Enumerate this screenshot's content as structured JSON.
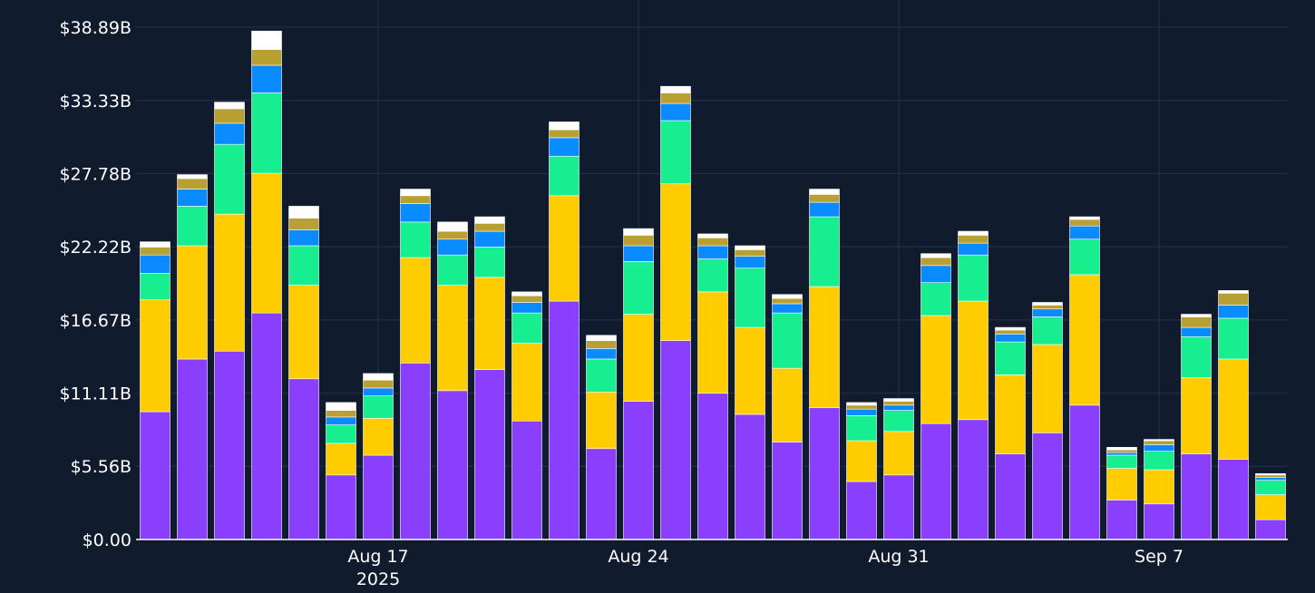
{
  "chart_data": {
    "type": "bar",
    "stacked": true,
    "title": "",
    "xlabel": "",
    "ylabel": "",
    "ylim": [
      0,
      39
    ],
    "y_ticks": [
      0,
      5.56,
      11.11,
      16.67,
      22.22,
      27.78,
      33.33,
      38.89
    ],
    "y_tick_labels": [
      "$0.00",
      "$5.56B",
      "$11.11B",
      "$16.67B",
      "$22.22B",
      "$27.78B",
      "$33.33B",
      "$38.89B"
    ],
    "x_tick_labels": [
      {
        "date": "2025-08-17",
        "line1": "Aug 17",
        "line2": "2025"
      },
      {
        "date": "2025-08-24",
        "line1": "Aug 24",
        "line2": ""
      },
      {
        "date": "2025-08-31",
        "line1": "Aug 31",
        "line2": ""
      },
      {
        "date": "2025-09-07",
        "line1": "Sep 7",
        "line2": ""
      }
    ],
    "categories": [
      "2025-08-11",
      "2025-08-12",
      "2025-08-13",
      "2025-08-14",
      "2025-08-15",
      "2025-08-16",
      "2025-08-17",
      "2025-08-18",
      "2025-08-19",
      "2025-08-20",
      "2025-08-21",
      "2025-08-22",
      "2025-08-23",
      "2025-08-24",
      "2025-08-25",
      "2025-08-26",
      "2025-08-27",
      "2025-08-28",
      "2025-08-29",
      "2025-08-30",
      "2025-08-31",
      "2025-09-01",
      "2025-09-02",
      "2025-09-03",
      "2025-09-04",
      "2025-09-05",
      "2025-09-06",
      "2025-09-07",
      "2025-09-08",
      "2025-09-09",
      "2025-09-10"
    ],
    "grid": true,
    "legend": "none",
    "series_colors": [
      "#8a3ffc",
      "#ffcc00",
      "#17ee8f",
      "#0a8bff",
      "#b8a032",
      "#ffffff"
    ],
    "series": [
      {
        "values": [
          9.7,
          13.7,
          14.3,
          17.2,
          12.2,
          4.9,
          6.4,
          13.4,
          11.3,
          12.9,
          9.0,
          18.1,
          6.9,
          10.5,
          15.1,
          11.1,
          9.5,
          7.4,
          10.0,
          4.4,
          4.9,
          8.8,
          9.1,
          6.5,
          8.1,
          10.2,
          3.0,
          2.7,
          6.5,
          6.1,
          1.5
        ]
      },
      {
        "values": [
          8.5,
          8.6,
          10.4,
          10.6,
          7.1,
          2.4,
          2.8,
          8.0,
          8.0,
          7.0,
          5.9,
          8.0,
          4.3,
          6.6,
          11.9,
          7.7,
          6.6,
          5.6,
          9.2,
          3.1,
          3.3,
          8.2,
          9.0,
          6.0,
          6.7,
          9.9,
          2.4,
          2.6,
          5.8,
          7.6,
          1.9
        ]
      },
      {
        "values": [
          2.0,
          3.0,
          5.3,
          6.1,
          3.0,
          1.4,
          1.7,
          2.7,
          2.3,
          2.3,
          2.3,
          3.0,
          2.5,
          4.0,
          4.8,
          2.5,
          4.5,
          4.2,
          5.3,
          1.9,
          1.6,
          2.5,
          3.5,
          2.5,
          2.1,
          2.7,
          1.0,
          1.4,
          3.1,
          3.1,
          1.1
        ]
      },
      {
        "values": [
          1.4,
          1.3,
          1.6,
          2.1,
          1.2,
          0.6,
          0.6,
          1.4,
          1.2,
          1.2,
          0.8,
          1.4,
          0.8,
          1.2,
          1.3,
          1.0,
          0.9,
          0.7,
          1.1,
          0.5,
          0.4,
          1.3,
          0.9,
          0.6,
          0.6,
          1.0,
          0.2,
          0.5,
          0.7,
          1.0,
          0.2
        ]
      },
      {
        "values": [
          0.6,
          0.8,
          1.1,
          1.2,
          0.9,
          0.5,
          0.6,
          0.6,
          0.6,
          0.6,
          0.5,
          0.6,
          0.6,
          0.8,
          0.8,
          0.6,
          0.5,
          0.4,
          0.6,
          0.3,
          0.3,
          0.6,
          0.6,
          0.3,
          0.3,
          0.5,
          0.2,
          0.3,
          0.8,
          0.9,
          0.2
        ]
      },
      {
        "values": [
          0.4,
          0.3,
          0.5,
          1.4,
          0.9,
          0.6,
          0.5,
          0.5,
          0.7,
          0.5,
          0.3,
          0.6,
          0.4,
          0.5,
          0.5,
          0.3,
          0.3,
          0.3,
          0.4,
          0.2,
          0.2,
          0.3,
          0.3,
          0.2,
          0.2,
          0.2,
          0.2,
          0.1,
          0.2,
          0.2,
          0.1
        ]
      }
    ]
  }
}
